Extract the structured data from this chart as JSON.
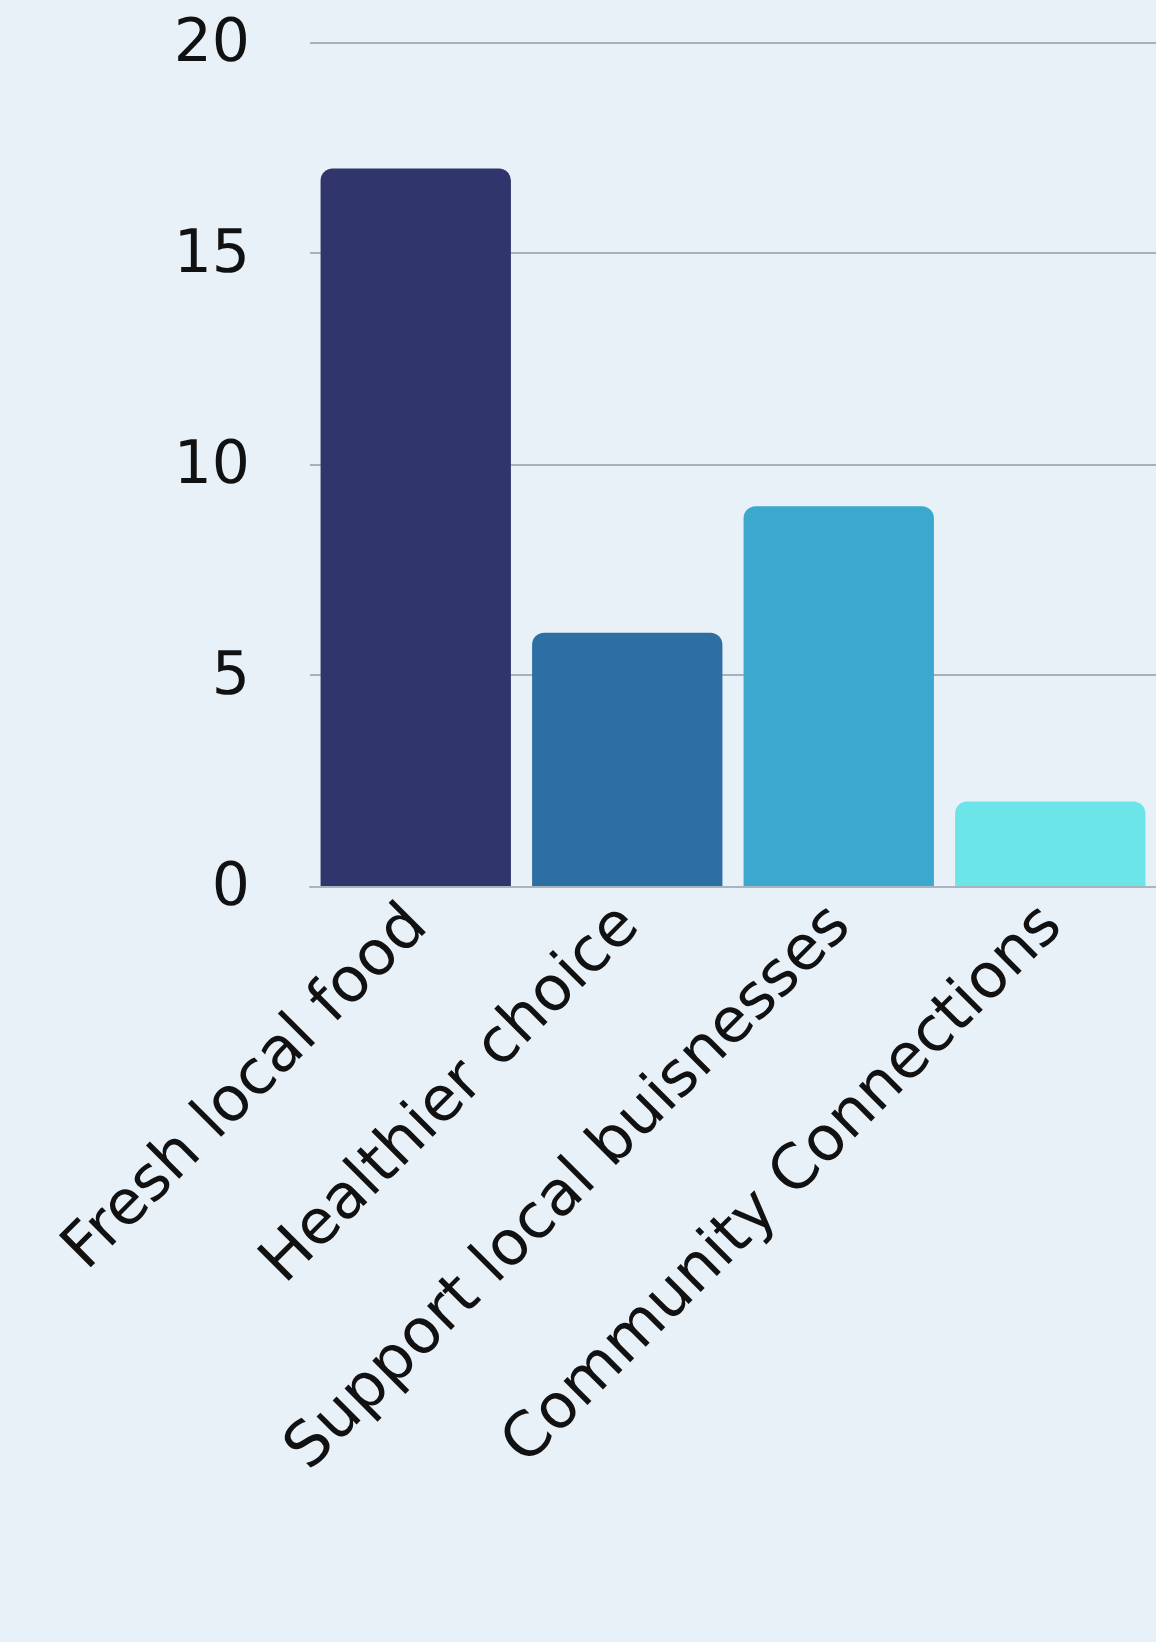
{
  "chart_data": {
    "type": "bar",
    "categories": [
      "Fresh local food",
      "Healthier choice",
      "Support local buisnesses",
      "Community Connections"
    ],
    "values": [
      17,
      6,
      9,
      2
    ],
    "colors": [
      "#30366b",
      "#2e6fa3",
      "#3ba8ce",
      "#6ce5e9"
    ],
    "ylim": [
      0,
      20
    ],
    "yticks": [
      0,
      5,
      10,
      15,
      20
    ],
    "grid": "y"
  }
}
